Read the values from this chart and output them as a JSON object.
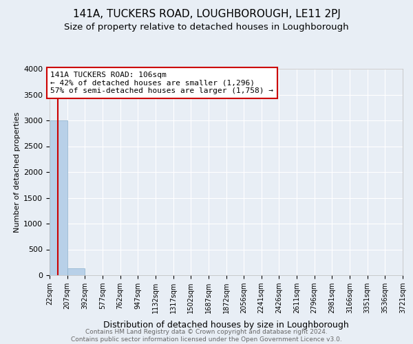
{
  "title": "141A, TUCKERS ROAD, LOUGHBOROUGH, LE11 2PJ",
  "subtitle": "Size of property relative to detached houses in Loughborough",
  "xlabel": "Distribution of detached houses by size in Loughborough",
  "ylabel": "Number of detached properties",
  "footer_line1": "Contains HM Land Registry data © Crown copyright and database right 2024.",
  "footer_line2": "Contains public sector information licensed under the Open Government Licence v3.0.",
  "bar_edges": [
    22,
    207,
    392,
    577,
    762,
    947,
    1132,
    1317,
    1502,
    1687,
    1872,
    2056,
    2241,
    2426,
    2611,
    2796,
    2981,
    3166,
    3351,
    3536,
    3721
  ],
  "bar_labels": [
    "22sqm",
    "207sqm",
    "392sqm",
    "577sqm",
    "762sqm",
    "947sqm",
    "1132sqm",
    "1317sqm",
    "1502sqm",
    "1687sqm",
    "1872sqm",
    "2056sqm",
    "2241sqm",
    "2426sqm",
    "2611sqm",
    "2796sqm",
    "2981sqm",
    "3166sqm",
    "3351sqm",
    "3536sqm",
    "3721sqm"
  ],
  "bar_heights": [
    3000,
    130,
    5,
    2,
    1,
    1,
    0,
    0,
    0,
    0,
    0,
    0,
    0,
    0,
    0,
    0,
    0,
    0,
    0,
    0
  ],
  "bar_color": "#b8d0e8",
  "bar_edgecolor": "#8ab0cc",
  "property_line_x": 106,
  "property_line_color": "#cc0000",
  "annotation_title": "141A TUCKERS ROAD: 106sqm",
  "annotation_line1": "← 42% of detached houses are smaller (1,296)",
  "annotation_line2": "57% of semi-detached houses are larger (1,758) →",
  "annotation_box_color": "#cc0000",
  "ylim": [
    0,
    4000
  ],
  "yticks": [
    0,
    500,
    1000,
    1500,
    2000,
    2500,
    3000,
    3500,
    4000
  ],
  "background_color": "#e8eef5",
  "grid_color": "#ffffff",
  "title_fontsize": 11,
  "subtitle_fontsize": 9.5,
  "ylabel_fontsize": 8,
  "xlabel_fontsize": 9,
  "footer_fontsize": 6.5
}
